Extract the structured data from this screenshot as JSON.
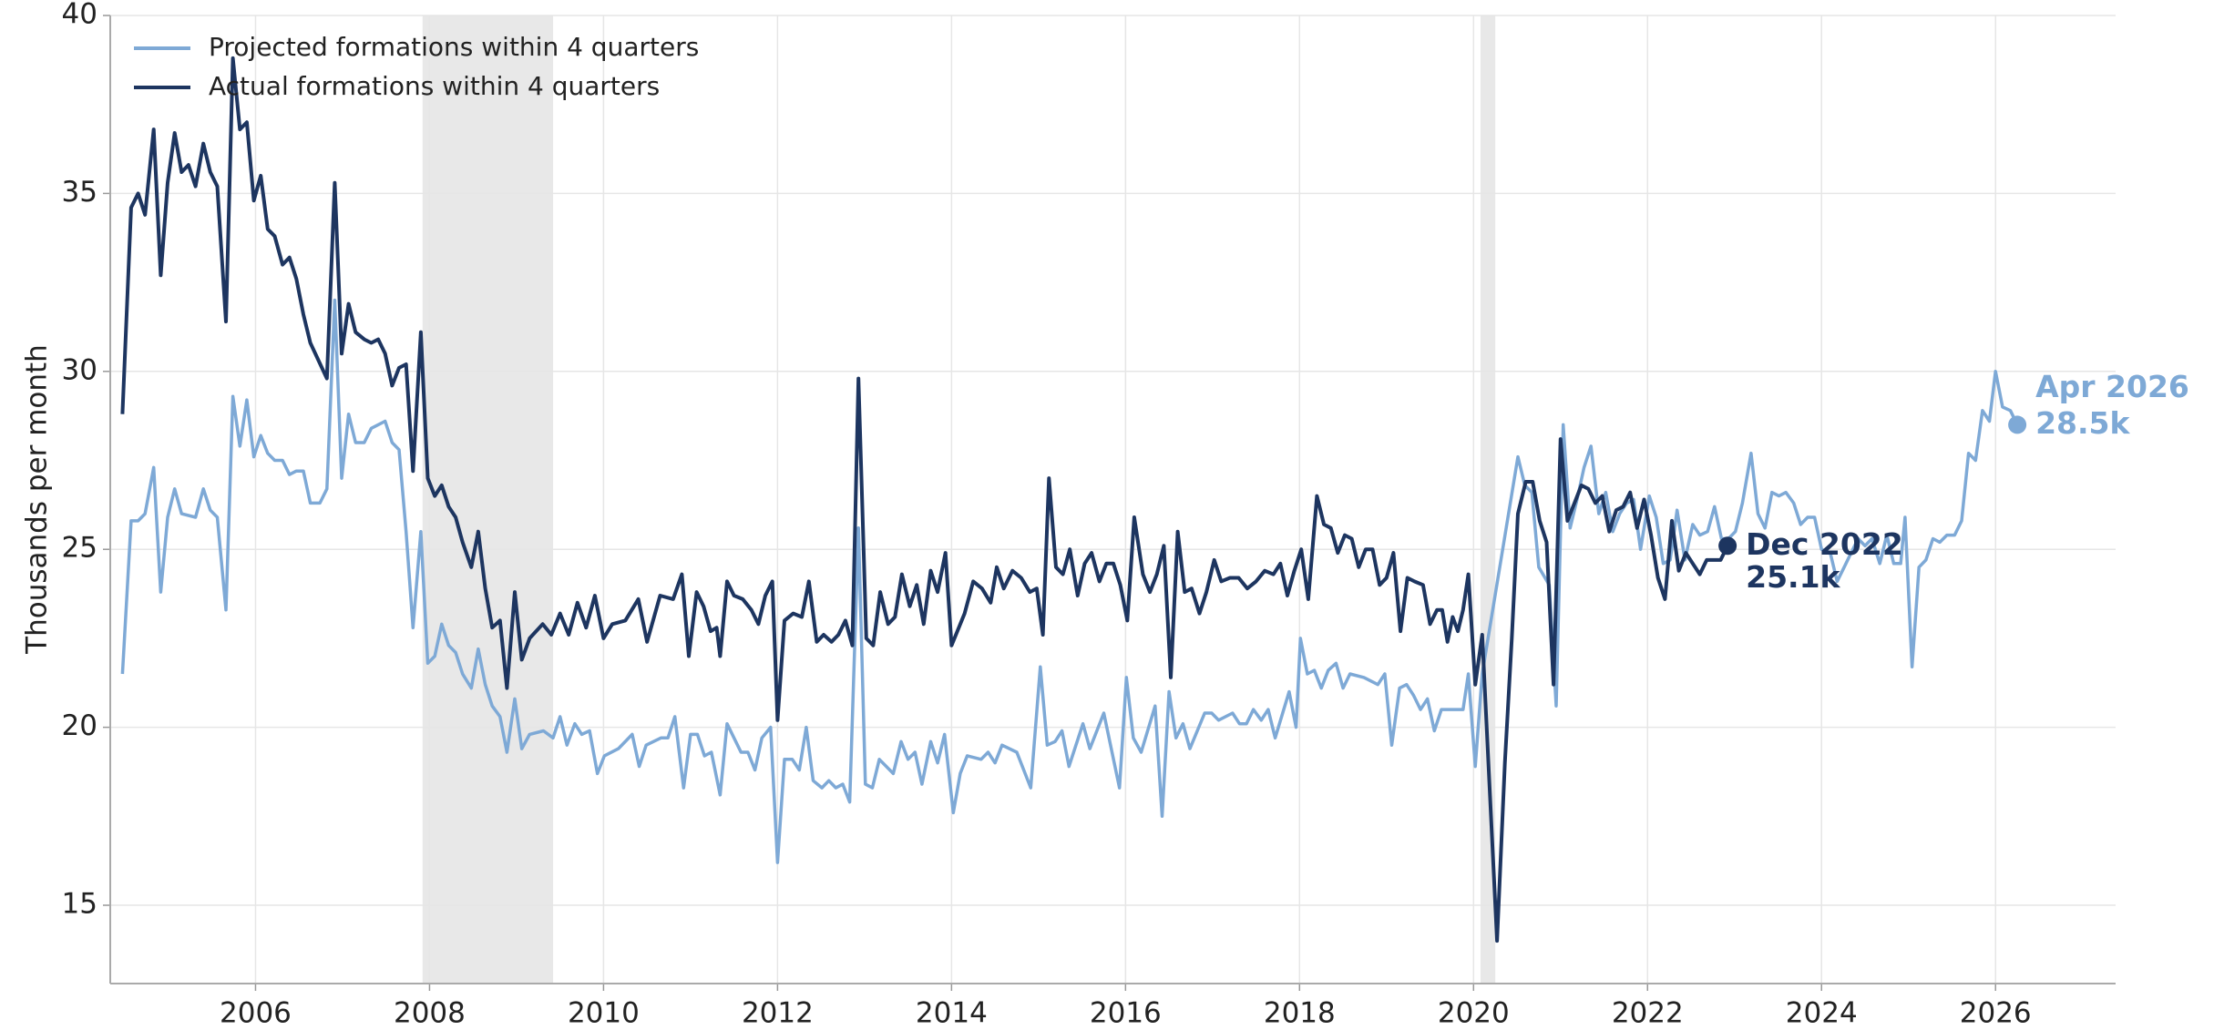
{
  "chart_data": {
    "type": "line",
    "ylabel": "Thousands per month",
    "xlim": [
      2004.33,
      2027.38
    ],
    "ylim": [
      12.8,
      40
    ],
    "xticks": [
      2006,
      2008,
      2010,
      2012,
      2014,
      2016,
      2018,
      2020,
      2022,
      2024,
      2026
    ],
    "yticks": [
      15,
      20,
      25,
      30,
      35,
      40
    ],
    "grid": true,
    "legend": "upper left",
    "shaded": [
      [
        2007.92,
        2009.42
      ],
      [
        2020.08,
        2020.25
      ]
    ],
    "series": [
      {
        "name": "Projected formations within 4 quarters",
        "color": "#7ea9d6",
        "annotation": {
          "lines": [
            "Apr 2026",
            "28.5k"
          ],
          "x": 2026.25,
          "y": 28.5
        },
        "x": [
          2004.47,
          2004.57,
          2004.65,
          2004.73,
          2004.83,
          2004.91,
          2004.99,
          2005.07,
          2005.15,
          2005.31,
          2005.4,
          2005.48,
          2005.56,
          2005.66,
          2005.74,
          2005.82,
          2005.9,
          2005.98,
          2006.06,
          2006.14,
          2006.22,
          2006.31,
          2006.39,
          2006.47,
          2006.55,
          2006.63,
          2006.74,
          2006.82,
          2006.91,
          2006.99,
          2007.07,
          2007.15,
          2007.25,
          2007.33,
          2007.41,
          2007.49,
          2007.57,
          2007.65,
          2007.73,
          2007.81,
          2007.9,
          2007.98,
          2008.06,
          2008.14,
          2008.22,
          2008.3,
          2008.38,
          2008.48,
          2008.56,
          2008.64,
          2008.72,
          2008.81,
          2008.89,
          2008.98,
          2009.06,
          2009.15,
          2009.31,
          2009.42,
          2009.5,
          2009.58,
          2009.67,
          2009.75,
          2009.84,
          2009.93,
          2010.01,
          2010.17,
          2010.33,
          2010.41,
          2010.49,
          2010.66,
          2010.74,
          2010.82,
          2010.92,
          2011.0,
          2011.08,
          2011.16,
          2011.24,
          2011.34,
          2011.42,
          2011.58,
          2011.66,
          2011.74,
          2011.82,
          2011.92,
          2012.0,
          2012.08,
          2012.17,
          2012.25,
          2012.33,
          2012.41,
          2012.51,
          2012.59,
          2012.67,
          2012.75,
          2012.83,
          2012.93,
          2013.01,
          2013.09,
          2013.17,
          2013.33,
          2013.42,
          2013.5,
          2013.58,
          2013.66,
          2013.76,
          2013.84,
          2013.92,
          2014.02,
          2014.1,
          2014.18,
          2014.34,
          2014.42,
          2014.5,
          2014.58,
          2014.75,
          2014.91,
          2015.02,
          2015.1,
          2015.19,
          2015.27,
          2015.35,
          2015.51,
          2015.59,
          2015.75,
          2015.93,
          2016.01,
          2016.09,
          2016.18,
          2016.34,
          2016.42,
          2016.5,
          2016.58,
          2016.66,
          2016.74,
          2016.91,
          2016.99,
          2017.07,
          2017.23,
          2017.31,
          2017.39,
          2017.47,
          2017.56,
          2017.64,
          2017.72,
          2017.88,
          2017.96,
          2018.01,
          2018.09,
          2018.17,
          2018.25,
          2018.33,
          2018.42,
          2018.5,
          2018.58,
          2018.74,
          2018.9,
          2018.98,
          2019.06,
          2019.15,
          2019.23,
          2019.31,
          2019.39,
          2019.47,
          2019.55,
          2019.63,
          2019.8,
          2019.88,
          2019.94,
          2020.02,
          2020.1,
          2020.51,
          2020.59,
          2020.67,
          2020.75,
          2020.87,
          2020.95,
          2021.03,
          2021.11,
          2021.19,
          2021.27,
          2021.35,
          2021.44,
          2021.52,
          2021.6,
          2021.68,
          2021.76,
          2021.84,
          2021.92,
          2022.02,
          2022.1,
          2022.18,
          2022.26,
          2022.34,
          2022.43,
          2022.52,
          2022.6,
          2022.69,
          2022.77,
          2022.85,
          2022.93,
          2023.01,
          2023.09,
          2023.19,
          2023.27,
          2023.35,
          2023.43,
          2023.51,
          2023.59,
          2023.68,
          2023.76,
          2023.84,
          2023.92,
          2024.0,
          2024.1,
          2024.18,
          2024.26,
          2024.34,
          2024.42,
          2024.5,
          2024.58,
          2024.67,
          2024.75,
          2024.83,
          2024.91,
          2024.96,
          2025.04,
          2025.12,
          2025.2,
          2025.28,
          2025.36,
          2025.44,
          2025.53,
          2025.61,
          2025.69,
          2025.77,
          2025.85,
          2025.93,
          2026.0,
          2026.08,
          2026.17,
          2026.25
        ],
        "values": [
          21.5,
          25.8,
          25.8,
          26.0,
          27.3,
          23.8,
          25.9,
          26.7,
          26.0,
          25.9,
          26.7,
          26.1,
          25.9,
          23.3,
          29.3,
          27.9,
          29.2,
          27.6,
          28.2,
          27.7,
          27.5,
          27.5,
          27.1,
          27.2,
          27.2,
          26.3,
          26.3,
          26.7,
          32.0,
          27.0,
          28.8,
          28.0,
          28.0,
          28.4,
          28.5,
          28.6,
          28.0,
          27.8,
          25.5,
          22.8,
          25.5,
          21.8,
          22.0,
          22.9,
          22.3,
          22.1,
          21.5,
          21.1,
          22.2,
          21.2,
          20.6,
          20.3,
          19.3,
          20.8,
          19.4,
          19.8,
          19.9,
          19.7,
          20.3,
          19.5,
          20.1,
          19.8,
          19.9,
          18.7,
          19.2,
          19.4,
          19.8,
          18.9,
          19.5,
          19.7,
          19.7,
          20.3,
          18.3,
          19.8,
          19.8,
          19.2,
          19.3,
          18.1,
          20.1,
          19.3,
          19.3,
          18.8,
          19.7,
          20.0,
          16.2,
          19.1,
          19.1,
          18.8,
          20.0,
          18.5,
          18.3,
          18.5,
          18.3,
          18.4,
          17.9,
          25.6,
          18.4,
          18.3,
          19.1,
          18.7,
          19.6,
          19.1,
          19.3,
          18.4,
          19.6,
          19.0,
          19.8,
          17.6,
          18.7,
          19.2,
          19.1,
          19.3,
          19.0,
          19.5,
          19.3,
          18.3,
          21.7,
          19.5,
          19.6,
          19.9,
          18.9,
          20.1,
          19.4,
          20.4,
          18.3,
          21.4,
          19.7,
          19.3,
          20.6,
          17.5,
          21.0,
          19.7,
          20.1,
          19.4,
          20.4,
          20.4,
          20.2,
          20.4,
          20.1,
          20.1,
          20.5,
          20.2,
          20.5,
          19.7,
          21.0,
          20.0,
          22.5,
          21.5,
          21.6,
          21.1,
          21.6,
          21.8,
          21.1,
          21.5,
          21.4,
          21.2,
          21.5,
          19.5,
          21.1,
          21.2,
          20.9,
          20.5,
          20.8,
          19.9,
          20.5,
          20.5,
          20.5,
          21.5,
          18.9,
          21.5,
          27.6,
          26.8,
          26.6,
          24.5,
          24.0,
          20.6,
          28.5,
          25.6,
          26.4,
          27.3,
          27.9,
          26.0,
          26.6,
          25.5,
          26.0,
          26.3,
          26.4,
          25.0,
          26.5,
          25.9,
          24.6,
          24.7,
          26.1,
          24.7,
          25.7,
          25.4,
          25.5,
          26.2,
          25.3,
          25.3,
          25.5,
          26.3,
          27.7,
          26.0,
          25.6,
          26.6,
          26.5,
          26.6,
          26.3,
          25.7,
          25.9,
          25.9,
          25.0,
          24.9,
          24.1,
          24.5,
          24.9,
          25.3,
          25.1,
          25.3,
          24.6,
          25.4,
          24.6,
          24.6,
          25.9,
          21.7,
          24.5,
          24.7,
          25.3,
          25.2,
          25.4,
          25.4,
          25.8,
          27.7,
          27.5,
          28.9,
          28.6,
          30.0,
          29.0,
          28.9,
          28.5
        ]
      },
      {
        "name": "Actual formations within 4 quarters",
        "color": "#1d3560",
        "annotation": {
          "lines": [
            "Dec 2022",
            "25.1k"
          ],
          "x": 2022.92,
          "y": 25.1
        },
        "x": [
          2004.47,
          2004.57,
          2004.65,
          2004.73,
          2004.83,
          2004.91,
          2004.99,
          2005.07,
          2005.15,
          2005.23,
          2005.31,
          2005.4,
          2005.48,
          2005.56,
          2005.66,
          2005.74,
          2005.82,
          2005.9,
          2005.98,
          2006.06,
          2006.14,
          2006.22,
          2006.31,
          2006.39,
          2006.47,
          2006.55,
          2006.63,
          2006.82,
          2006.91,
          2006.99,
          2007.07,
          2007.15,
          2007.25,
          2007.33,
          2007.41,
          2007.49,
          2007.57,
          2007.65,
          2007.73,
          2007.81,
          2007.9,
          2007.98,
          2008.06,
          2008.14,
          2008.22,
          2008.3,
          2008.38,
          2008.48,
          2008.56,
          2008.64,
          2008.72,
          2008.81,
          2008.89,
          2008.98,
          2009.06,
          2009.15,
          2009.3,
          2009.4,
          2009.5,
          2009.6,
          2009.7,
          2009.8,
          2009.9,
          2010.0,
          2010.1,
          2010.25,
          2010.4,
          2010.5,
          2010.65,
          2010.8,
          2010.9,
          2010.98,
          2011.07,
          2011.15,
          2011.23,
          2011.3,
          2011.34,
          2011.42,
          2011.5,
          2011.6,
          2011.7,
          2011.78,
          2011.86,
          2011.94,
          2012.0,
          2012.08,
          2012.18,
          2012.28,
          2012.36,
          2012.45,
          2012.53,
          2012.62,
          2012.7,
          2012.78,
          2012.86,
          2012.93,
          2013.02,
          2013.1,
          2013.18,
          2013.27,
          2013.35,
          2013.43,
          2013.52,
          2013.6,
          2013.68,
          2013.76,
          2013.84,
          2013.93,
          2014.0,
          2014.15,
          2014.25,
          2014.35,
          2014.45,
          2014.52,
          2014.6,
          2014.7,
          2014.8,
          2014.9,
          2014.98,
          2015.05,
          2015.12,
          2015.2,
          2015.28,
          2015.36,
          2015.45,
          2015.53,
          2015.61,
          2015.7,
          2015.78,
          2015.86,
          2015.94,
          2016.02,
          2016.1,
          2016.2,
          2016.28,
          2016.36,
          2016.44,
          2016.52,
          2016.6,
          2016.68,
          2016.76,
          2016.85,
          2016.93,
          2017.02,
          2017.1,
          2017.2,
          2017.3,
          2017.4,
          2017.5,
          2017.6,
          2017.7,
          2017.78,
          2017.86,
          2017.94,
          2018.02,
          2018.1,
          2018.2,
          2018.28,
          2018.36,
          2018.44,
          2018.52,
          2018.6,
          2018.68,
          2018.76,
          2018.84,
          2018.92,
          2019.0,
          2019.08,
          2019.16,
          2019.24,
          2019.32,
          2019.42,
          2019.5,
          2019.58,
          2019.64,
          2019.7,
          2019.76,
          2019.82,
          2019.88,
          2019.94,
          2020.02,
          2020.1,
          2020.27,
          2020.36,
          2020.44,
          2020.51,
          2020.6,
          2020.68,
          2020.76,
          2020.84,
          2020.92,
          2021.0,
          2021.08,
          2021.16,
          2021.24,
          2021.32,
          2021.4,
          2021.48,
          2021.56,
          2021.64,
          2021.72,
          2021.8,
          2021.88,
          2021.96,
          2022.04,
          2022.12,
          2022.2,
          2022.28,
          2022.36,
          2022.44,
          2022.52,
          2022.6,
          2022.68,
          2022.76,
          2022.84,
          2022.92
        ],
        "values": [
          28.8,
          34.6,
          35.0,
          34.4,
          36.8,
          32.7,
          35.3,
          36.7,
          35.6,
          35.8,
          35.2,
          36.4,
          35.6,
          35.2,
          31.4,
          38.8,
          36.8,
          37.0,
          34.8,
          35.5,
          34.0,
          33.8,
          33.0,
          33.2,
          32.6,
          31.6,
          30.8,
          29.8,
          35.3,
          30.5,
          31.9,
          31.1,
          30.9,
          30.8,
          30.9,
          30.5,
          29.6,
          30.1,
          30.2,
          27.2,
          31.1,
          27.0,
          26.5,
          26.8,
          26.2,
          25.9,
          25.2,
          24.5,
          25.5,
          23.9,
          22.8,
          23.0,
          21.1,
          23.8,
          21.9,
          22.5,
          22.9,
          22.6,
          23.2,
          22.6,
          23.5,
          22.8,
          23.7,
          22.5,
          22.9,
          23.0,
          23.6,
          22.4,
          23.7,
          23.6,
          24.3,
          22.0,
          23.8,
          23.4,
          22.7,
          22.8,
          22.0,
          24.1,
          23.7,
          23.6,
          23.3,
          22.9,
          23.7,
          24.1,
          20.2,
          23.0,
          23.2,
          23.1,
          24.1,
          22.4,
          22.6,
          22.4,
          22.6,
          23.0,
          22.3,
          29.8,
          22.5,
          22.3,
          23.8,
          22.9,
          23.1,
          24.3,
          23.4,
          24.0,
          22.9,
          24.4,
          23.8,
          24.9,
          22.3,
          23.2,
          24.1,
          23.9,
          23.5,
          24.5,
          23.9,
          24.4,
          24.2,
          23.8,
          23.9,
          22.6,
          27.0,
          24.5,
          24.3,
          25.0,
          23.7,
          24.6,
          24.9,
          24.1,
          24.6,
          24.6,
          24.0,
          23.0,
          25.9,
          24.3,
          23.8,
          24.3,
          25.1,
          21.4,
          25.5,
          23.8,
          23.9,
          23.2,
          23.8,
          24.7,
          24.1,
          24.2,
          24.2,
          23.9,
          24.1,
          24.4,
          24.3,
          24.6,
          23.7,
          24.4,
          25.0,
          23.6,
          26.5,
          25.7,
          25.6,
          24.9,
          25.4,
          25.3,
          24.5,
          25.0,
          25.0,
          24.0,
          24.2,
          24.9,
          22.7,
          24.2,
          24.1,
          24.0,
          22.9,
          23.3,
          23.3,
          22.4,
          23.1,
          22.7,
          23.3,
          24.3,
          21.2,
          22.6,
          14.0,
          19.0,
          22.5,
          26.0,
          26.9,
          26.9,
          25.8,
          25.2,
          21.2,
          28.1,
          25.8,
          26.3,
          26.8,
          26.7,
          26.3,
          26.5,
          25.5,
          26.1,
          26.2,
          26.6,
          25.6,
          26.4,
          25.4,
          24.2,
          23.6,
          25.8,
          24.4,
          24.9,
          24.6,
          24.3,
          24.7,
          24.7,
          24.7,
          25.1
        ]
      }
    ]
  }
}
